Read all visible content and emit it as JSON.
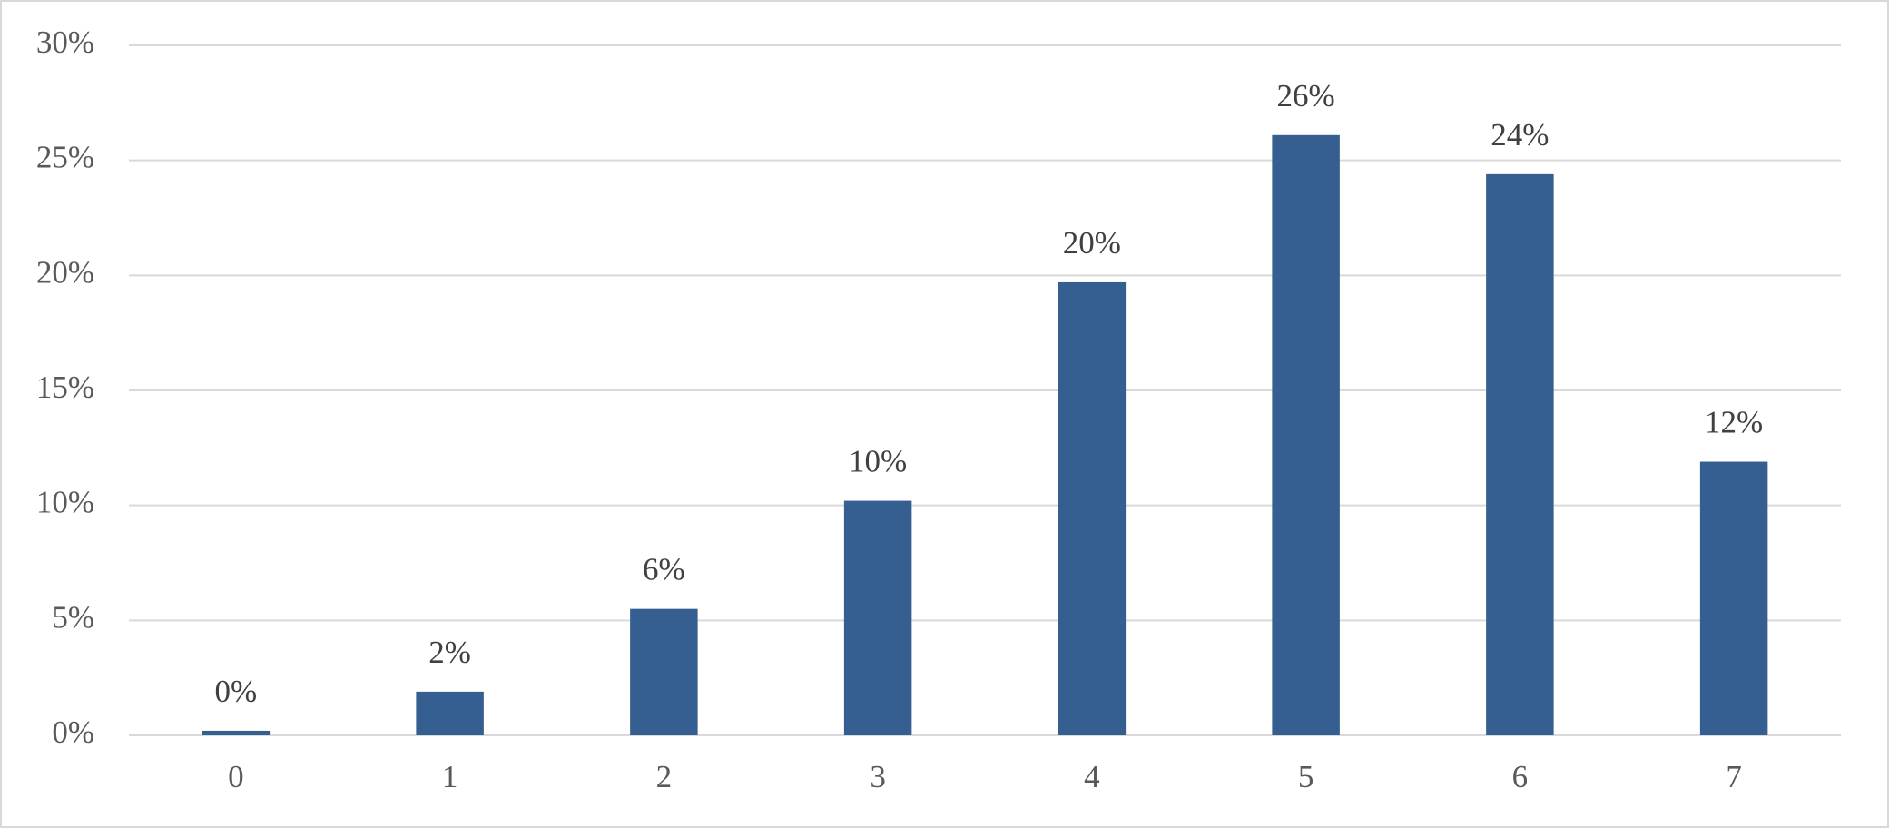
{
  "chart_data": {
    "type": "bar",
    "categories": [
      "0",
      "1",
      "2",
      "3",
      "4",
      "5",
      "6",
      "7"
    ],
    "values": [
      0.2,
      1.9,
      5.5,
      10.2,
      19.7,
      26.1,
      24.4,
      11.9
    ],
    "value_labels": [
      "0%",
      "2%",
      "6%",
      "10%",
      "20%",
      "26%",
      "24%",
      "12%"
    ],
    "color": "#365f91",
    "ylim": [
      0,
      30
    ],
    "yticks": [
      {
        "value": 0,
        "label": "0%"
      },
      {
        "value": 5,
        "label": "5%"
      },
      {
        "value": 10,
        "label": "10%"
      },
      {
        "value": 15,
        "label": "15%"
      },
      {
        "value": 20,
        "label": "20%"
      },
      {
        "value": 25,
        "label": "25%"
      },
      {
        "value": 30,
        "label": "30%"
      }
    ],
    "grid": true
  }
}
